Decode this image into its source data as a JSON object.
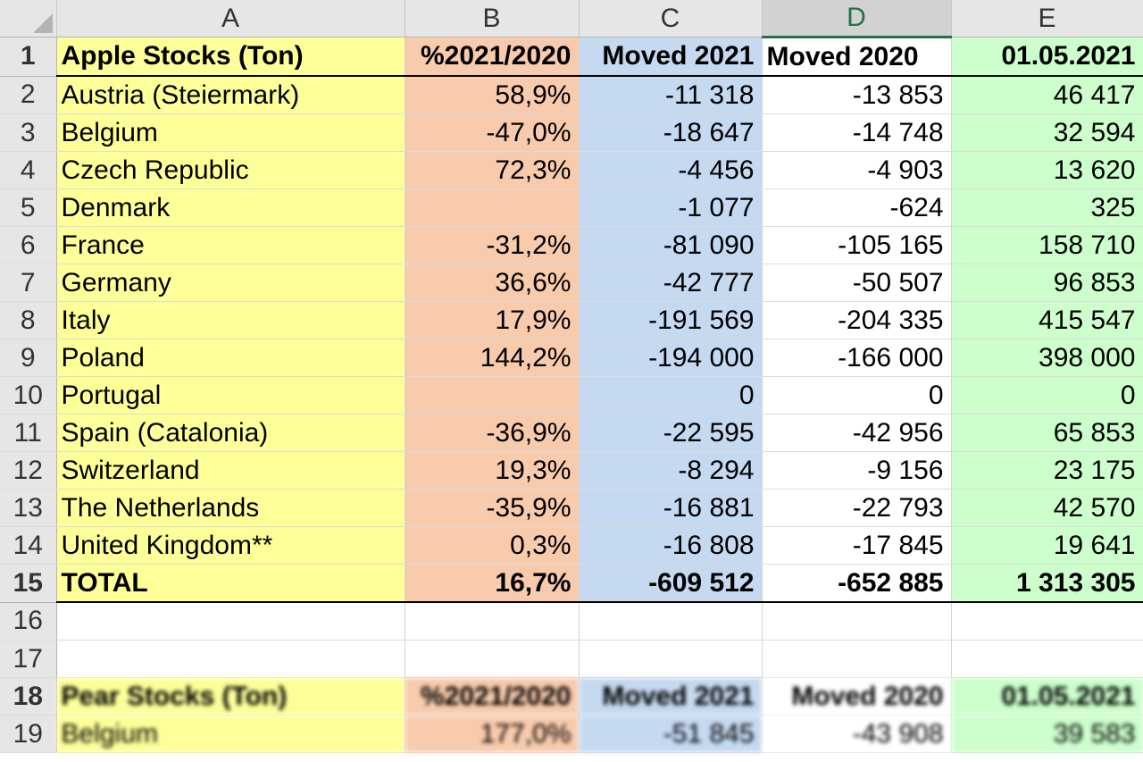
{
  "columns": [
    "A",
    "B",
    "C",
    "D",
    "E"
  ],
  "rows": [
    {
      "num": "1",
      "a": "Apple Stocks (Ton)",
      "b": "%2021/2020",
      "c": "Moved 2021",
      "d": "Moved 2020",
      "e": "01.05.2021"
    },
    {
      "num": "2",
      "a": "Austria (Steiermark)",
      "b": "58,9%",
      "c": "-11 318",
      "d": "-13 853",
      "e": "46 417"
    },
    {
      "num": "3",
      "a": "Belgium",
      "b": "-47,0%",
      "c": "-18 647",
      "d": "-14 748",
      "e": "32 594"
    },
    {
      "num": "4",
      "a": "Czech Republic",
      "b": "72,3%",
      "c": "-4 456",
      "d": "-4 903",
      "e": "13 620"
    },
    {
      "num": "5",
      "a": "Denmark",
      "b": "",
      "c": "-1 077",
      "d": "-624",
      "e": "325"
    },
    {
      "num": "6",
      "a": "France",
      "b": "-31,2%",
      "c": "-81 090",
      "d": "-105 165",
      "e": "158 710"
    },
    {
      "num": "7",
      "a": "Germany",
      "b": "36,6%",
      "c": "-42 777",
      "d": "-50 507",
      "e": "96 853"
    },
    {
      "num": "8",
      "a": "Italy",
      "b": "17,9%",
      "c": "-191 569",
      "d": "-204 335",
      "e": "415 547"
    },
    {
      "num": "9",
      "a": "Poland",
      "b": "144,2%",
      "c": "-194 000",
      "d": "-166 000",
      "e": "398 000"
    },
    {
      "num": "10",
      "a": "Portugal",
      "b": "",
      "c": "0",
      "d": "0",
      "e": "0"
    },
    {
      "num": "11",
      "a": "Spain (Catalonia)",
      "b": "-36,9%",
      "c": "-22 595",
      "d": "-42 956",
      "e": "65 853"
    },
    {
      "num": "12",
      "a": "Switzerland",
      "b": "19,3%",
      "c": "-8 294",
      "d": "-9 156",
      "e": "23 175"
    },
    {
      "num": "13",
      "a": "The Netherlands",
      "b": "-35,9%",
      "c": "-16 881",
      "d": "-22 793",
      "e": "42 570"
    },
    {
      "num": "14",
      "a": "United Kingdom**",
      "b": "0,3%",
      "c": "-16 808",
      "d": "-17 845",
      "e": "19 641"
    },
    {
      "num": "15",
      "a": "TOTAL",
      "b": "16,7%",
      "c": "-609 512",
      "d": "-652 885",
      "e": "1 313 305"
    },
    {
      "num": "16",
      "a": "",
      "b": "",
      "c": "",
      "d": "",
      "e": ""
    },
    {
      "num": "17",
      "a": "",
      "b": "",
      "c": "",
      "d": "",
      "e": ""
    },
    {
      "num": "18",
      "a": "Pear Stocks (Ton)",
      "b": "%2021/2020",
      "c": "Moved 2021",
      "d": "Moved 2020",
      "e": "01.05.2021"
    },
    {
      "num": "19",
      "a": "Belgium",
      "b": "177,0%",
      "c": "-51 845",
      "d": "-43 908",
      "e": "39 583"
    }
  ]
}
